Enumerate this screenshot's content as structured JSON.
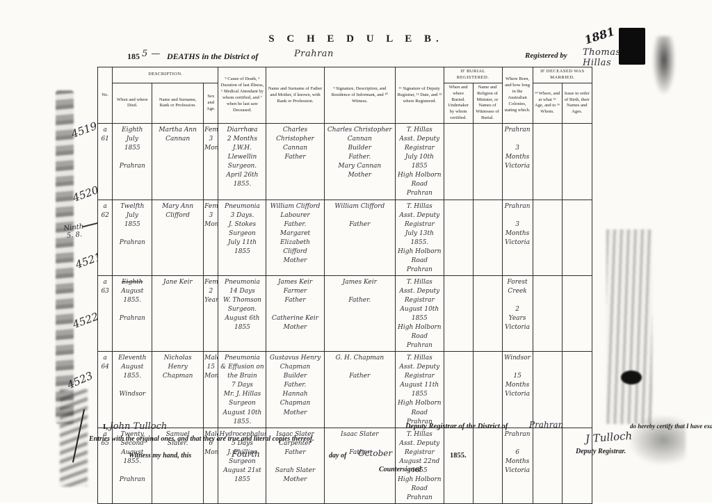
{
  "header": {
    "schedule_title": "S C H E D U L E   B.",
    "year_printed": "185",
    "year_hw": "5 —",
    "deaths_label": "DEATHS in the District of",
    "district_hw": "Prahran",
    "registered_label": "Registered by",
    "registrar_hw": "Thomas Hillas",
    "corner_number_hw": "1881"
  },
  "table": {
    "header": {
      "no": "No.",
      "description_group": "DESCRIPTION.",
      "when_where": "When and where Died.",
      "name_rank": "Name and Surname, Rank or Profession.",
      "sex_age": "Sex and Age.",
      "cause": "⁴ Cause of Death, ⁵ Duration of last Illness, ⁶ Medical Attendant by whom certified, and ⁷ when he last saw Deceased.",
      "parents": "Name and Surname of Father and Mother, if known, with Rank or Profession.",
      "informant": "⁹ Signature, Description, and Residence of Informant, and ¹⁰ Witness.",
      "deputy": "¹¹ Signature of Deputy Registrar, ¹² Date, and ¹³ where Registered.",
      "burial_group": "IF BURIAL REGISTERED.",
      "burial_when": "When and where Buried. Undertaker by whom certified.",
      "burial_minister": "Name and Religion of Minister, or Names of Witnesses of Burial.",
      "where_born": "Where Born, and how long in the Australian Colonies, stating which.",
      "married_group": "IF DECEASED WAS MARRIED.",
      "married_where": "¹⁴ Where, and at what ¹⁵ Age, and to ¹⁶ Whom.",
      "issue": "Issue in order of Birth, their Names and Ages."
    },
    "rows": [
      {
        "no": "a\n61",
        "died": "Eighth\nJuly\n1855\n\nPrahran",
        "name": "Martha Ann\nCannan",
        "sex_age": "Female\n3\nMonths",
        "cause": "Diarrhœa\n2 Months\nJ.W.H. Llewellin\nSurgeon.\nApril 26th 1855.",
        "parents": "Charles Christopher\nCannan\nFather",
        "informant": "Charles Christopher\nCannan\nBuilder\nFather.\nMary Cannan\nMother",
        "deputy": "T. Hillas\nAsst. Deputy\nRegistrar\nJuly 10th 1855\nHigh Holborn Road\nPrahran",
        "burial_when": "",
        "burial_minister": "",
        "born": "Prahran\n\n3\nMonths\nVictoria",
        "married_where": "",
        "issue": ""
      },
      {
        "no": "a\n62",
        "died": "Twelfth\nJuly\n1855\n\nPrahran",
        "name": "Mary Ann\nClifford",
        "sex_age": "Female\n3\nMonths",
        "cause": "Pneumonia\n3 Days.\nJ. Stokes\nSurgeon\nJuly 11th 1855",
        "parents": "William Clifford\nLabourer\nFather.\nMargaret Elizabeth\nClifford\nMother",
        "informant": "William Clifford\n\nFather",
        "deputy": "T. Hillas\nAsst. Deputy\nRegistrar\nJuly 13th 1855.\nHigh Holborn Road\nPrahran",
        "burial_when": "",
        "burial_minister": "",
        "born": "Prahran\n\n3\nMonths\nVictoria",
        "married_where": "",
        "issue": ""
      },
      {
        "no": "a\n63",
        "died": {
          "struck": "Eighth",
          "text": "August\n1855.\n\nPrahran"
        },
        "name": "Jane Keir",
        "sex_age": "Female\n2\nYears",
        "cause": "Pneumonia\n14 Days\nW. Thomson\nSurgeon.\nAugust 6th 1855",
        "parents": "James Keir\nFarmer\nFather\n\nCatherine Keir\nMother",
        "informant": "James Keir\n\nFather.",
        "deputy": "T. Hillas\nAsst. Deputy\nRegistrar\nAugust 10th 1855\nHigh Holborn Road\nPrahran",
        "burial_when": "",
        "burial_minister": "",
        "born": "Forest Creek\n\n2\nYears\nVictoria",
        "married_where": "",
        "issue": ""
      },
      {
        "no": "a\n64",
        "died": "Eleventh\nAugust\n1855.\n\nWindsor",
        "name": "Nicholas\nHenry\nChapman",
        "sex_age": "Male\n15\nMonths",
        "cause": "Pneumonia\n& Effusion on\nthe Brain\n7 Days\nMr. J. Hillas\nSurgeon\nAugust 10th 1855.",
        "parents": "Gustavus Henry\nChapman\nBuilder\nFather.\nHannah Chapman\nMother",
        "informant": "G. H. Chapman\n\nFather",
        "deputy": "T. Hillas\nAsst. Deputy\nRegistrar\nAugust 11th 1855\nHigh Holborn Road\nPrahran",
        "burial_when": "",
        "burial_minister": "",
        "born": "Windsor\n\n15\nMonths\nVictoria",
        "married_where": "",
        "issue": ""
      },
      {
        "no": "a\n65",
        "died": "Twenty Second\nAugust\n1855.\n\nPrahran",
        "name": "Samuel\nSlater.",
        "sex_age": "Male\n6\nMonths",
        "cause": "Hydrocephalus\n5 Days\nJ. Phillips\nSurgeon\nAugust 21st 1855",
        "parents": "Isaac Slater\nCarpenter\nFather\n\nSarah Slater\nMother",
        "informant": "Isaac Slater\n\nFather",
        "deputy": "T. Hillas\nAsst. Deputy\nRegistrar\nAugust 22nd 1855\nHigh Holborn Road\nPrahran",
        "burial_when": "",
        "burial_minister": "",
        "born": "Prahran\n\n6\nMonths\nVictoria",
        "married_where": "",
        "issue": ""
      }
    ]
  },
  "margin": {
    "numbers": [
      "4519",
      "4520",
      "4521",
      "4522",
      "4523"
    ],
    "note": "Ninth\n5. 8."
  },
  "footer": {
    "i_label": "I,",
    "name_hw": "John Tulloch",
    "deputy_label": "Deputy Registrar of the District of",
    "district_hw": "Prahran",
    "certify_label": "do hereby certify that I have examined the above",
    "entries_line": "Entries with the original ones, and that they are true and literal copies thereof.",
    "witness_label": "Witness my hand, this",
    "day_hw": "Fourth",
    "day_of_label": "day of",
    "month_hw": "October",
    "year_label": "1855.",
    "signature_hw": "J Tulloch",
    "signature_title": "Deputy Registrar.",
    "countersigned_label": "Countersigned"
  }
}
